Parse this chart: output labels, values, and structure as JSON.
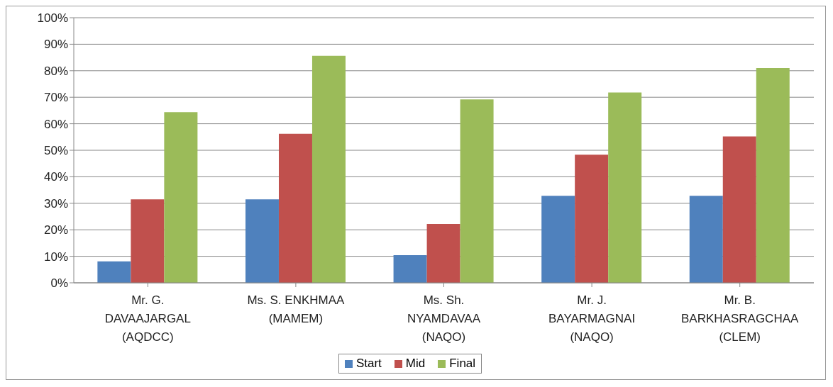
{
  "chart_data": {
    "type": "bar",
    "categories": [
      "Mr. G. DAVAAJARGAL (AQDCC)",
      "Ms. S. ENKHMAA (MAMEM)",
      "Ms. Sh. NYAMDAVAA (NAQO)",
      "Mr. J. BAYARMAGNAI (NAQO)",
      "Mr. B. BARKHASRAGCHAA (CLEM)"
    ],
    "series": [
      {
        "name": "Start",
        "color": "#4f81bd",
        "values": [
          8.1,
          31.5,
          10.4,
          32.8,
          32.8
        ]
      },
      {
        "name": "Mid",
        "color": "#c0504d",
        "values": [
          31.5,
          56.2,
          22.2,
          48.3,
          55.2
        ]
      },
      {
        "name": "Final",
        "color": "#9bbb59",
        "values": [
          64.4,
          85.6,
          69.2,
          71.8,
          81.0
        ]
      }
    ],
    "ylim": [
      0,
      100
    ],
    "yticks": [
      {
        "value": 0,
        "label": "0%"
      },
      {
        "value": 10,
        "label": "10%"
      },
      {
        "value": 20,
        "label": "20%"
      },
      {
        "value": 30,
        "label": "30%"
      },
      {
        "value": 40,
        "label": "40%"
      },
      {
        "value": 50,
        "label": "50%"
      },
      {
        "value": 60,
        "label": "60%"
      },
      {
        "value": 70,
        "label": "70%"
      },
      {
        "value": 80,
        "label": "80%"
      },
      {
        "value": 90,
        "label": "90%"
      },
      {
        "value": 100,
        "label": "100%"
      }
    ],
    "grid": "y",
    "legend": "bottom"
  }
}
